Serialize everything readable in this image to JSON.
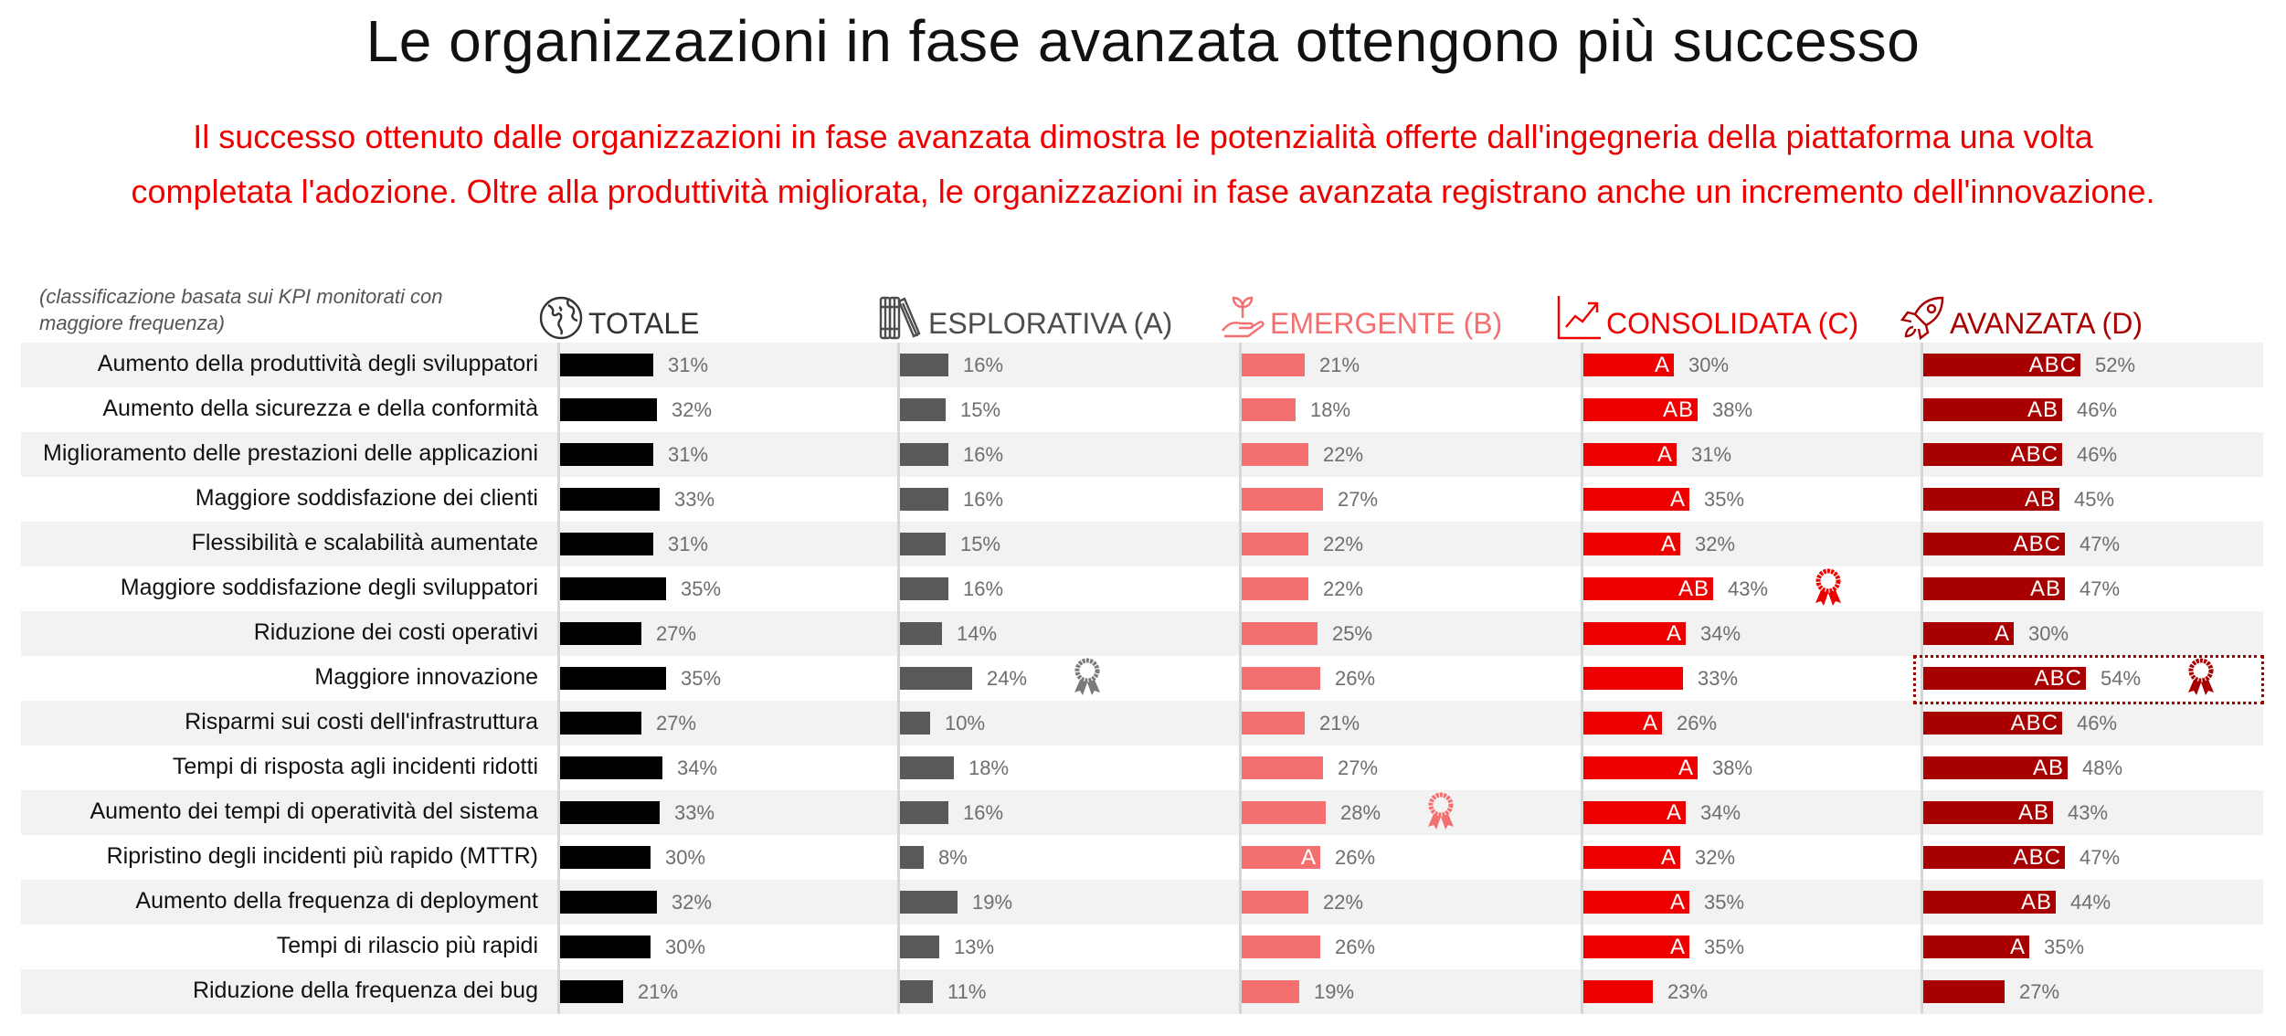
{
  "title": "Le organizzazioni in fase avanzata ottengono più successo",
  "subtitle": {
    "line1": "Il successo ottenuto dalle organizzazioni in fase avanzata dimostra le potenzialità offerte dall'ingegneria della piattaforma una volta",
    "line2": "completata l'adozione. Oltre alla produttività migliorata, le organizzazioni in fase avanzata registrano anche un incremento dell'innovazione."
  },
  "note": "(classificazione basata sui KPI monitorati con maggiore frequenza)",
  "columns": [
    {
      "key": "totale",
      "label": "TOTALE",
      "icon": "globe-icon",
      "color": "#000000",
      "header_color": "#333333"
    },
    {
      "key": "esplorativa",
      "label": "ESPLORATIVA (A)",
      "icon": "books-icon",
      "color": "#595959",
      "header_color": "#4d4d4d"
    },
    {
      "key": "emergente",
      "label": "EMERGENTE (B)",
      "icon": "sprout-hand-icon",
      "color": "#f47070",
      "header_color": "#f47070"
    },
    {
      "key": "consolidata",
      "label": "CONSOLIDATA (C)",
      "icon": "growth-chart-icon",
      "color": "#ee0000",
      "header_color": "#ee0000"
    },
    {
      "key": "avanzata",
      "label": "AVANZATA (D)",
      "icon": "rocket-icon",
      "color": "#a80000",
      "header_color": "#a80000"
    }
  ],
  "rows": [
    {
      "label": "Aumento della produttività degli sviluppatori",
      "values": [
        "31%",
        "16%",
        "21%",
        "30%",
        "52%"
      ],
      "sig": [
        "",
        "",
        "",
        "A",
        "ABC"
      ]
    },
    {
      "label": "Aumento della sicurezza e della conformità",
      "values": [
        "32%",
        "15%",
        "18%",
        "38%",
        "46%"
      ],
      "sig": [
        "",
        "",
        "",
        "AB",
        "AB"
      ]
    },
    {
      "label": "Miglioramento delle prestazioni delle applicazioni",
      "values": [
        "31%",
        "16%",
        "22%",
        "31%",
        "46%"
      ],
      "sig": [
        "",
        "",
        "",
        "A",
        "ABC"
      ]
    },
    {
      "label": "Maggiore soddisfazione dei clienti",
      "values": [
        "33%",
        "16%",
        "27%",
        "35%",
        "45%"
      ],
      "sig": [
        "",
        "",
        "",
        "A",
        "AB"
      ]
    },
    {
      "label": "Flessibilità e scalabilità aumentate",
      "values": [
        "31%",
        "15%",
        "22%",
        "32%",
        "47%"
      ],
      "sig": [
        "",
        "",
        "",
        "A",
        "ABC"
      ]
    },
    {
      "label": "Maggiore soddisfazione degli sviluppatori",
      "values": [
        "35%",
        "16%",
        "22%",
        "43%",
        "47%"
      ],
      "sig": [
        "",
        "",
        "",
        "AB",
        "AB"
      ]
    },
    {
      "label": "Riduzione dei costi operativi",
      "values": [
        "27%",
        "14%",
        "25%",
        "34%",
        "30%"
      ],
      "sig": [
        "",
        "",
        "",
        "A",
        "A"
      ]
    },
    {
      "label": "Maggiore innovazione",
      "values": [
        "35%",
        "24%",
        "26%",
        "33%",
        "54%"
      ],
      "sig": [
        "",
        "",
        "",
        "",
        "ABC"
      ]
    },
    {
      "label": "Risparmi sui costi dell'infrastruttura",
      "values": [
        "27%",
        "10%",
        "21%",
        "26%",
        "46%"
      ],
      "sig": [
        "",
        "",
        "",
        "A",
        "ABC"
      ]
    },
    {
      "label": "Tempi di risposta agli incidenti ridotti",
      "values": [
        "34%",
        "18%",
        "27%",
        "38%",
        "48%"
      ],
      "sig": [
        "",
        "",
        "",
        "A",
        "AB"
      ]
    },
    {
      "label": "Aumento dei tempi di operatività del sistema",
      "values": [
        "33%",
        "16%",
        "28%",
        "34%",
        "43%"
      ],
      "sig": [
        "",
        "",
        "",
        "A",
        "AB"
      ]
    },
    {
      "label": "Ripristino degli incidenti più rapido (MTTR)",
      "values": [
        "30%",
        "8%",
        "26%",
        "32%",
        "47%"
      ],
      "sig": [
        "",
        "",
        "A",
        "A",
        "ABC"
      ]
    },
    {
      "label": "Aumento della frequenza di deployment",
      "values": [
        "32%",
        "19%",
        "22%",
        "35%",
        "44%"
      ],
      "sig": [
        "",
        "",
        "",
        "A",
        "AB"
      ]
    },
    {
      "label": "Tempi di rilascio più rapidi",
      "values": [
        "30%",
        "13%",
        "26%",
        "35%",
        "35%"
      ],
      "sig": [
        "",
        "",
        "",
        "A",
        "A"
      ]
    },
    {
      "label": "Riduzione della frequenza dei bug",
      "values": [
        "21%",
        "11%",
        "19%",
        "23%",
        "27%"
      ],
      "sig": [
        "",
        "",
        "",
        "",
        ""
      ]
    }
  ],
  "awards": [
    {
      "column": "esplorativa",
      "row": 7,
      "color": "#7a7a7a"
    },
    {
      "column": "emergente",
      "row": 10,
      "color": "#f47070"
    },
    {
      "column": "consolidata",
      "row": 5,
      "color": "#ee0000"
    },
    {
      "column": "avanzata",
      "row": 7,
      "color": "#a80000"
    }
  ],
  "highlight": {
    "column": "avanzata",
    "row": 7,
    "label": "Maggiore innovazione"
  },
  "chart_data": {
    "type": "bar",
    "orientation": "horizontal",
    "title": "Le organizzazioni in fase avanzata ottengono più successo",
    "subtitle": "Il successo ottenuto dalle organizzazioni in fase avanzata dimostra le potenzialità offerte dall'ingegneria della piattaforma una volta completata l'adozione. Oltre alla produttività migliorata, le organizzazioni in fase avanzata registrano anche un incremento dell'innovazione.",
    "note": "(classificazione basata sui KPI monitorati con maggiore frequenza)",
    "xlabel": "",
    "ylabel": "",
    "unit": "%",
    "grid": false,
    "legend": "column headers (small multiples)",
    "categories": [
      "Aumento della produttività degli sviluppatori",
      "Aumento della sicurezza e della conformità",
      "Miglioramento delle prestazioni delle applicazioni",
      "Maggiore soddisfazione dei clienti",
      "Flessibilità e scalabilità aumentate",
      "Maggiore soddisfazione degli sviluppatori",
      "Riduzione dei costi operativi",
      "Maggiore innovazione",
      "Risparmi sui costi dell'infrastruttura",
      "Tempi di risposta agli incidenti ridotti",
      "Aumento dei tempi di operatività del sistema",
      "Ripristino degli incidenti più rapido (MTTR)",
      "Aumento della frequenza di deployment",
      "Tempi di rilascio più rapidi",
      "Riduzione della frequenza dei bug"
    ],
    "series": [
      {
        "name": "TOTALE",
        "color": "#000000",
        "values": [
          31,
          32,
          31,
          33,
          31,
          35,
          27,
          35,
          27,
          34,
          33,
          30,
          32,
          30,
          21
        ]
      },
      {
        "name": "ESPLORATIVA (A)",
        "color": "#595959",
        "values": [
          16,
          15,
          16,
          16,
          15,
          16,
          14,
          24,
          10,
          18,
          16,
          8,
          19,
          13,
          11
        ]
      },
      {
        "name": "EMERGENTE (B)",
        "color": "#f47070",
        "values": [
          21,
          18,
          22,
          27,
          22,
          22,
          25,
          26,
          21,
          27,
          28,
          26,
          22,
          26,
          19
        ],
        "significance": [
          "",
          "",
          "",
          "",
          "",
          "",
          "",
          "",
          "",
          "",
          "",
          "A",
          "",
          "",
          ""
        ]
      },
      {
        "name": "CONSOLIDATA (C)",
        "color": "#ee0000",
        "values": [
          30,
          38,
          31,
          35,
          32,
          43,
          34,
          33,
          26,
          38,
          34,
          32,
          35,
          35,
          23
        ],
        "significance": [
          "A",
          "AB",
          "A",
          "A",
          "A",
          "AB",
          "A",
          "",
          "A",
          "A",
          "A",
          "A",
          "A",
          "A",
          ""
        ]
      },
      {
        "name": "AVANZATA (D)",
        "color": "#a80000",
        "values": [
          52,
          46,
          46,
          45,
          47,
          47,
          30,
          54,
          46,
          48,
          43,
          47,
          44,
          35,
          27
        ],
        "significance": [
          "ABC",
          "AB",
          "ABC",
          "AB",
          "ABC",
          "AB",
          "A",
          "ABC",
          "ABC",
          "AB",
          "AB",
          "ABC",
          "AB",
          "A",
          ""
        ]
      }
    ],
    "top_per_series": {
      "ESPLORATIVA (A)": "Maggiore innovazione",
      "EMERGENTE (B)": "Aumento dei tempi di operatività del sistema",
      "CONSOLIDATA (C)": "Maggiore soddisfazione degli sviluppatori",
      "AVANZATA (D)": "Maggiore innovazione"
    },
    "xlim": [
      0,
      60
    ]
  }
}
